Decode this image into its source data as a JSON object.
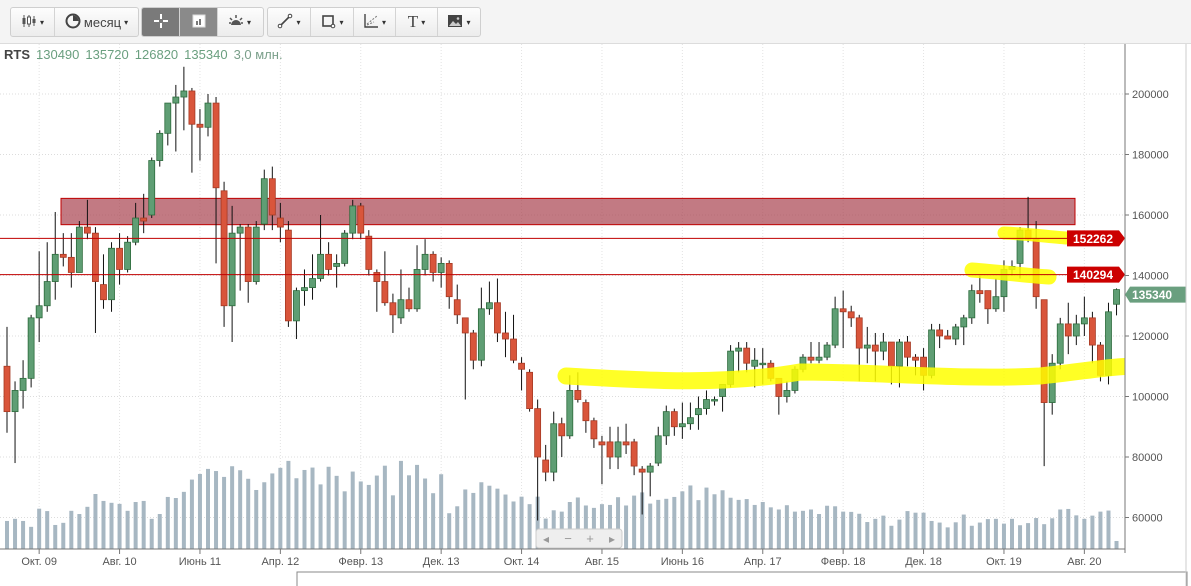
{
  "toolbar": {
    "chart_type_icon": "candlestick-icon",
    "period_label": "месяц",
    "period_icon": "clock-icon",
    "crosshair_icon": "crosshair-icon",
    "indicators_icon": "indicator-panel-icon",
    "effects_icon": "sun-icon",
    "line_tool_icon": "line-tool-icon",
    "shape_tool_icon": "rectangle-tool-icon",
    "fib_tool_icon": "fibonacci-tool-icon",
    "text_tool_label": "T",
    "image_tool_icon": "image-icon",
    "dropdown_caret": "▾"
  },
  "legend": {
    "symbol": "RTS",
    "open": "130490",
    "high": "135720",
    "low": "126820",
    "close": "135340",
    "volume": "3,0 млн."
  },
  "navigator": {
    "left": "◂",
    "zoom_out": "−",
    "zoom_in": "+",
    "right": "▸"
  },
  "colors": {
    "up": "#5f9e74",
    "down": "#d9553b",
    "level_line": "#c00000",
    "zone": "#a8424e",
    "highlight": "#ffff00",
    "last_price": "#6a9f7f"
  },
  "chart_data": {
    "type": "candlestick",
    "interval": "month",
    "symbol": "RTS",
    "first_month": "2009-06",
    "x_tick_labels": [
      "Окт. 09",
      "Авг. 10",
      "Июнь 11",
      "Апр. 12",
      "Февр. 13",
      "Дек. 13",
      "Окт. 14",
      "Авг. 15",
      "Июнь 16",
      "Апр. 17",
      "Февр. 18",
      "Дек. 18",
      "Окт. 19",
      "Авг. 20"
    ],
    "x_tick_candle_index": [
      4,
      14,
      24,
      34,
      44,
      54,
      64,
      74,
      84,
      94,
      104,
      114,
      124,
      134
    ],
    "y_ticks": [
      200000,
      180000,
      160000,
      140000,
      120000,
      100000,
      80000,
      60000
    ],
    "y_tick_labels": [
      "200000",
      "180000",
      "160000",
      "140000",
      "120000",
      "100000",
      "80000",
      "60000"
    ],
    "grid": true,
    "horizontal_levels": [
      {
        "value": 152262,
        "label": "152262"
      },
      {
        "value": 140294,
        "label": "140294"
      }
    ],
    "last_price": {
      "value": 135340,
      "label": "135340"
    },
    "resistance_zone": {
      "from": 156800,
      "to": 165500
    },
    "volume_unit": "млн",
    "ohlc": [
      [
        110000,
        123000,
        88000,
        95000
      ],
      [
        95000,
        105000,
        78000,
        102000
      ],
      [
        102000,
        112000,
        96000,
        106000
      ],
      [
        106000,
        127000,
        103000,
        126000
      ],
      [
        126000,
        148000,
        118000,
        130000
      ],
      [
        130000,
        151000,
        128000,
        138000
      ],
      [
        138000,
        161000,
        132000,
        147000
      ],
      [
        147000,
        154000,
        143000,
        146000
      ],
      [
        146000,
        154000,
        136000,
        141000
      ],
      [
        141000,
        158000,
        141000,
        156000
      ],
      [
        156000,
        165000,
        152000,
        154000
      ],
      [
        154000,
        156000,
        121000,
        138000
      ],
      [
        137000,
        147000,
        129000,
        132000
      ],
      [
        132000,
        151000,
        128000,
        149000
      ],
      [
        149000,
        154000,
        137000,
        142000
      ],
      [
        142000,
        153000,
        141000,
        151000
      ],
      [
        151000,
        164000,
        150000,
        159000
      ],
      [
        159000,
        167000,
        154000,
        158000
      ],
      [
        160000,
        179000,
        159000,
        178000
      ],
      [
        178000,
        188000,
        176000,
        187000
      ],
      [
        187000,
        197000,
        183000,
        197000
      ],
      [
        197000,
        203000,
        181000,
        199000
      ],
      [
        199000,
        209000,
        188000,
        201000
      ],
      [
        201000,
        202000,
        174000,
        190000
      ],
      [
        190000,
        195000,
        178000,
        189000
      ],
      [
        189000,
        200000,
        186000,
        197000
      ],
      [
        197000,
        199000,
        144000,
        169000
      ],
      [
        168000,
        171000,
        123000,
        130000
      ],
      [
        130000,
        163000,
        118000,
        154000
      ],
      [
        154000,
        157000,
        135000,
        156000
      ],
      [
        156000,
        157000,
        131000,
        138000
      ],
      [
        138000,
        158000,
        137000,
        156000
      ],
      [
        157000,
        175000,
        155000,
        172000
      ],
      [
        172000,
        176000,
        155000,
        160000
      ],
      [
        159000,
        164000,
        151000,
        156000
      ],
      [
        155000,
        158000,
        123000,
        125000
      ],
      [
        125000,
        136000,
        119000,
        135000
      ],
      [
        135000,
        142000,
        130000,
        136000
      ],
      [
        136000,
        147000,
        132000,
        139000
      ],
      [
        139000,
        160000,
        138000,
        147000
      ],
      [
        147000,
        151000,
        140000,
        142000
      ],
      [
        143000,
        147000,
        136000,
        144000
      ],
      [
        144000,
        155000,
        143000,
        154000
      ],
      [
        154000,
        165000,
        152000,
        163000
      ],
      [
        163000,
        164000,
        152000,
        154000
      ],
      [
        153000,
        155000,
        140000,
        142000
      ],
      [
        141000,
        142000,
        128000,
        138000
      ],
      [
        138000,
        148000,
        130000,
        131000
      ],
      [
        131000,
        134000,
        121000,
        127000
      ],
      [
        126000,
        142000,
        124000,
        132000
      ],
      [
        132000,
        136000,
        128000,
        129000
      ],
      [
        129000,
        150000,
        128000,
        142000
      ],
      [
        142000,
        152000,
        140000,
        147000
      ],
      [
        147000,
        148000,
        138000,
        141000
      ],
      [
        141000,
        146000,
        136000,
        144000
      ],
      [
        144000,
        145000,
        129000,
        133000
      ],
      [
        132000,
        137000,
        124000,
        127000
      ],
      [
        126000,
        126000,
        99000,
        121000
      ],
      [
        121000,
        122000,
        109000,
        112000
      ],
      [
        112000,
        136000,
        110000,
        129000
      ],
      [
        129000,
        138000,
        127000,
        131000
      ],
      [
        131000,
        139000,
        118000,
        121000
      ],
      [
        121000,
        128000,
        113000,
        119000
      ],
      [
        119000,
        127000,
        111000,
        112000
      ],
      [
        111000,
        113000,
        102000,
        109000
      ],
      [
        108000,
        109000,
        95000,
        96000
      ],
      [
        96000,
        99000,
        59000,
        80000
      ],
      [
        79000,
        84000,
        72000,
        75000
      ],
      [
        75000,
        95000,
        72000,
        91000
      ],
      [
        91000,
        93000,
        80000,
        87000
      ],
      [
        87000,
        107000,
        86000,
        102000
      ],
      [
        102000,
        108000,
        98000,
        99000
      ],
      [
        98000,
        99000,
        88000,
        92000
      ],
      [
        92000,
        93000,
        83000,
        86000
      ],
      [
        85000,
        87000,
        71000,
        84000
      ],
      [
        85000,
        90000,
        76000,
        80000
      ],
      [
        80000,
        90000,
        76000,
        85000
      ],
      [
        85000,
        91000,
        81000,
        84000
      ],
      [
        85000,
        86000,
        74000,
        77000
      ],
      [
        76000,
        77000,
        61000,
        75000
      ],
      [
        75000,
        78000,
        67000,
        77000
      ],
      [
        78000,
        90000,
        77000,
        87000
      ],
      [
        87000,
        97000,
        84000,
        95000
      ],
      [
        95000,
        96000,
        87000,
        90000
      ],
      [
        90000,
        98000,
        86000,
        91000
      ],
      [
        91000,
        98000,
        89000,
        93000
      ],
      [
        94000,
        100000,
        89000,
        96000
      ],
      [
        96000,
        102000,
        94000,
        99000
      ],
      [
        99000,
        100000,
        97000,
        99000
      ],
      [
        100000,
        104000,
        95000,
        104000
      ],
      [
        104000,
        117000,
        103000,
        115000
      ],
      [
        115000,
        118000,
        108000,
        116000
      ],
      [
        116000,
        118000,
        108000,
        111000
      ],
      [
        110000,
        116000,
        103000,
        112000
      ],
      [
        111000,
        116000,
        104000,
        111000
      ],
      [
        111000,
        112000,
        105000,
        106000
      ],
      [
        106000,
        106000,
        94000,
        100000
      ],
      [
        100000,
        105000,
        98000,
        102000
      ],
      [
        102000,
        110000,
        101000,
        109000
      ],
      [
        109000,
        114000,
        108000,
        113000
      ],
      [
        113000,
        118000,
        111000,
        112000
      ],
      [
        112000,
        118000,
        111000,
        113000
      ],
      [
        113000,
        118000,
        112000,
        117000
      ],
      [
        117000,
        133000,
        116000,
        129000
      ],
      [
        129000,
        135000,
        116000,
        128000
      ],
      [
        128000,
        130000,
        123000,
        126000
      ],
      [
        126000,
        127000,
        105000,
        116000
      ],
      [
        116000,
        123000,
        111000,
        117000
      ],
      [
        117000,
        121000,
        105000,
        115000
      ],
      [
        115000,
        121000,
        112000,
        118000
      ],
      [
        118000,
        118000,
        104000,
        110000
      ],
      [
        110000,
        119000,
        103000,
        118000
      ],
      [
        118000,
        120000,
        110000,
        113000
      ],
      [
        113000,
        114000,
        107000,
        112000
      ],
      [
        113000,
        116000,
        102000,
        107000
      ],
      [
        107000,
        124000,
        106000,
        122000
      ],
      [
        122000,
        124000,
        116000,
        120000
      ],
      [
        120000,
        122000,
        119000,
        119000
      ],
      [
        119000,
        124000,
        117000,
        123000
      ],
      [
        123000,
        127000,
        117000,
        126000
      ],
      [
        126000,
        137000,
        124000,
        135000
      ],
      [
        135000,
        140000,
        131000,
        134000
      ],
      [
        135000,
        135000,
        124000,
        129000
      ],
      [
        129000,
        139000,
        128000,
        133000
      ],
      [
        133000,
        145000,
        128000,
        142000
      ],
      [
        142000,
        145000,
        140000,
        143000
      ],
      [
        144000,
        156000,
        139000,
        155000
      ],
      [
        155000,
        166000,
        151000,
        152000
      ],
      [
        152000,
        158000,
        129000,
        133000
      ],
      [
        132000,
        132000,
        77000,
        98000
      ],
      [
        98000,
        114000,
        94000,
        111000
      ],
      [
        111000,
        126000,
        109000,
        124000
      ],
      [
        124000,
        131000,
        114000,
        120000
      ],
      [
        120000,
        127000,
        117000,
        124000
      ],
      [
        124000,
        133000,
        120000,
        126000
      ],
      [
        126000,
        128000,
        111000,
        117000
      ],
      [
        117000,
        118000,
        105000,
        107000
      ],
      [
        107000,
        131000,
        104000,
        128000
      ],
      [
        130490,
        135720,
        126820,
        135340
      ]
    ],
    "volume": [
      10.5,
      11.3,
      10.5,
      8.3,
      15.1,
      14.2,
      9.0,
      9.8,
      14.3,
      13.1,
      15.8,
      20.6,
      18.0,
      17.3,
      16.9,
      14.3,
      17.6,
      18.0,
      11.3,
      13.1,
      19.5,
      19.1,
      21.4,
      26.0,
      28.1,
      30.0,
      29.2,
      27.0,
      31.0,
      29.5,
      26.3,
      22.1,
      25.0,
      28.3,
      30.4,
      33.0,
      26.5,
      29.6,
      30.5,
      24.2,
      30.8,
      27.4,
      21.6,
      29.0,
      25.3,
      24.0,
      27.5,
      31.2,
      20.1,
      33.0,
      27.6,
      31.5,
      26.4,
      20.9,
      28.0,
      13.4,
      16.0,
      22.3,
      21.0,
      25.0,
      23.7,
      22.6,
      20.4,
      17.8,
      19.6,
      16.8,
      19.6,
      11.4,
      14.5,
      14.0,
      17.6,
      19.3,
      16.3,
      15.4,
      16.8,
      16.5,
      19.4,
      16.3,
      20.0,
      21.2,
      17.0,
      18.4,
      18.8,
      19.5,
      21.6,
      23.8,
      18.3,
      23.0,
      20.5,
      22.0,
      19.2,
      18.4,
      18.7,
      16.5,
      17.6,
      15.6,
      14.8,
      16.4,
      14.0,
      14.3,
      14.8,
      13.1,
      16.2,
      16.0,
      14.0,
      13.9,
      13.2,
      10.1,
      11.3,
      12.5,
      8.7,
      11.0,
      14.2,
      13.6,
      13.6,
      10.5,
      9.9,
      8.1,
      10.0,
      12.9,
      8.7,
      9.9,
      11.2,
      11.3,
      9.5,
      11.3,
      8.9,
      9.7,
      11.6,
      9.3,
      11.5,
      14.8,
      15.0,
      12.6,
      11.3,
      12.5,
      14.0,
      14.4,
      3.0
    ]
  }
}
